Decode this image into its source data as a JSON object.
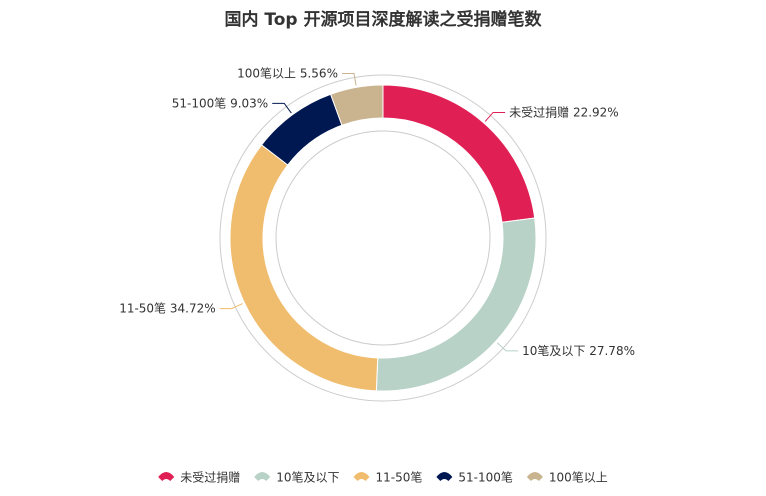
{
  "chart_data": {
    "type": "donut",
    "title": "国内 Top 开源项目深度解读之受捐赠笔数",
    "categories": [
      "未受过捐赠",
      "10笔及以下",
      "11-50笔",
      "51-100笔",
      "100笔以上"
    ],
    "values": [
      22.92,
      27.78,
      34.72,
      9.03,
      5.56
    ],
    "value_labels": [
      "22.92%",
      "27.78%",
      "34.72%",
      "9.03%",
      "5.56%"
    ],
    "colors": [
      "#e01f54",
      "#b8d2c7",
      "#f0bc6e",
      "#001852",
      "#c9b48f"
    ],
    "legend": "bottom"
  }
}
